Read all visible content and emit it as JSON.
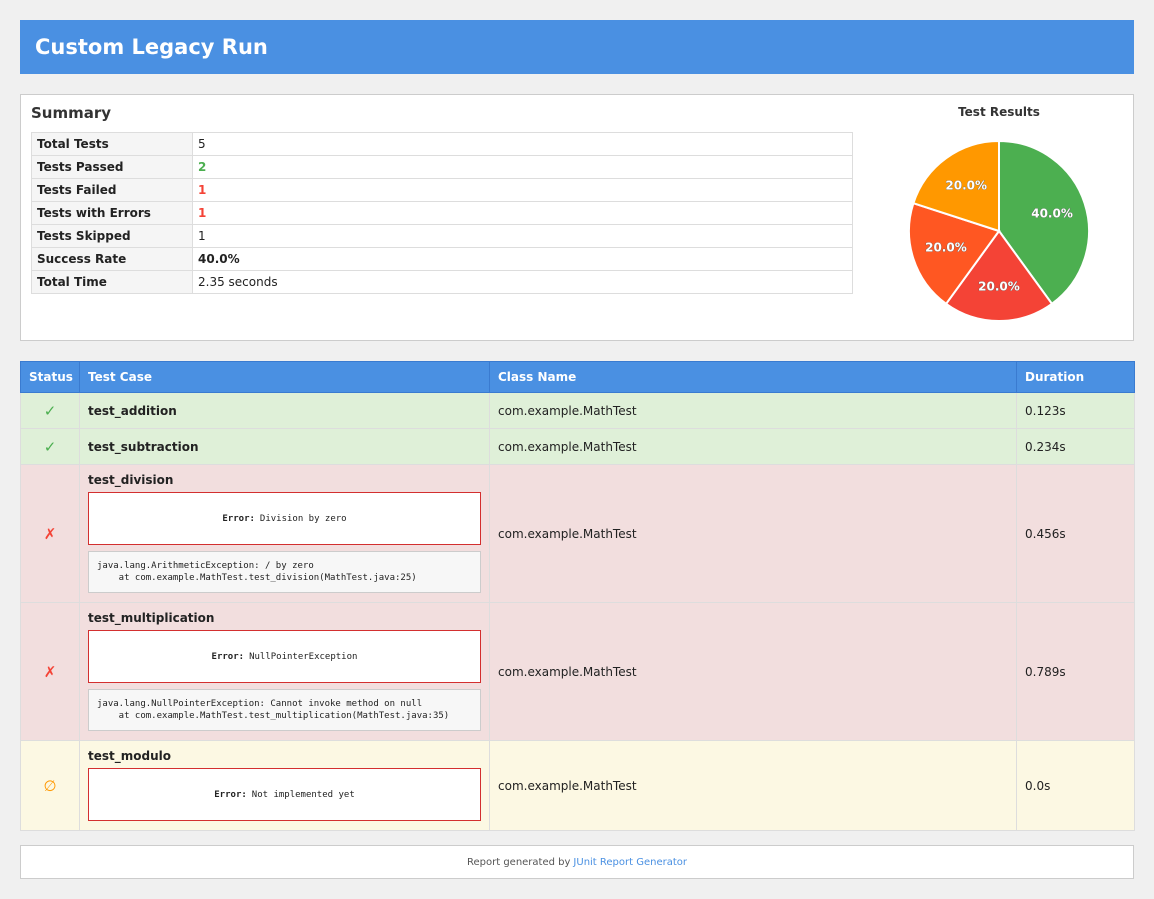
{
  "header": {
    "title": "Custom Legacy Run"
  },
  "summary": {
    "heading": "Summary",
    "rows": [
      {
        "label": "Total Tests",
        "value": "5"
      },
      {
        "label": "Tests Passed",
        "value": "2"
      },
      {
        "label": "Tests Failed",
        "value": "1"
      },
      {
        "label": "Tests with Errors",
        "value": "1"
      },
      {
        "label": "Tests Skipped",
        "value": "1"
      },
      {
        "label": "Success Rate",
        "value": "40.0%"
      },
      {
        "label": "Total Time",
        "value": "2.35 seconds"
      }
    ],
    "colors": {
      "passed": "#4caf50",
      "failed": "#f44336"
    }
  },
  "chart_data": {
    "type": "pie",
    "title": "Test Results",
    "values": [
      40.0,
      20.0,
      20.0,
      20.0
    ],
    "labels": [
      "40.0%",
      "20.0%",
      "20.0%",
      "20.0%"
    ],
    "colors": [
      "#4caf50",
      "#f44336",
      "#ff5722",
      "#ff9800"
    ]
  },
  "tests": {
    "columns": [
      "Status",
      "Test Case",
      "Class Name",
      "Duration"
    ],
    "rows": [
      {
        "status": "passed",
        "icon": "✓",
        "name": "test_addition",
        "class": "com.example.MathTest",
        "duration": "0.123s"
      },
      {
        "status": "passed",
        "icon": "✓",
        "name": "test_subtraction",
        "class": "com.example.MathTest",
        "duration": "0.234s"
      },
      {
        "status": "failed",
        "icon": "✗",
        "name": "test_division",
        "class": "com.example.MathTest",
        "duration": "0.456s",
        "error_label": "Error:",
        "error_message": "Division by zero",
        "trace": "java.lang.ArithmeticException: / by zero\n    at com.example.MathTest.test_division(MathTest.java:25)"
      },
      {
        "status": "failed",
        "icon": "✗",
        "name": "test_multiplication",
        "class": "com.example.MathTest",
        "duration": "0.789s",
        "error_label": "Error:",
        "error_message": "NullPointerException",
        "trace": "java.lang.NullPointerException: Cannot invoke method on null\n    at com.example.MathTest.test_multiplication(MathTest.java:35)"
      },
      {
        "status": "skipped",
        "icon": "∅",
        "name": "test_modulo",
        "class": "com.example.MathTest",
        "duration": "0.0s",
        "error_label": "Error:",
        "error_message": "Not implemented yet"
      }
    ],
    "status_colors": {
      "passed": "#4caf50",
      "failed": "#f44336",
      "skipped": "#ff9800"
    }
  },
  "footer": {
    "text": "Report generated by",
    "link_text": "JUnit Report Generator"
  }
}
